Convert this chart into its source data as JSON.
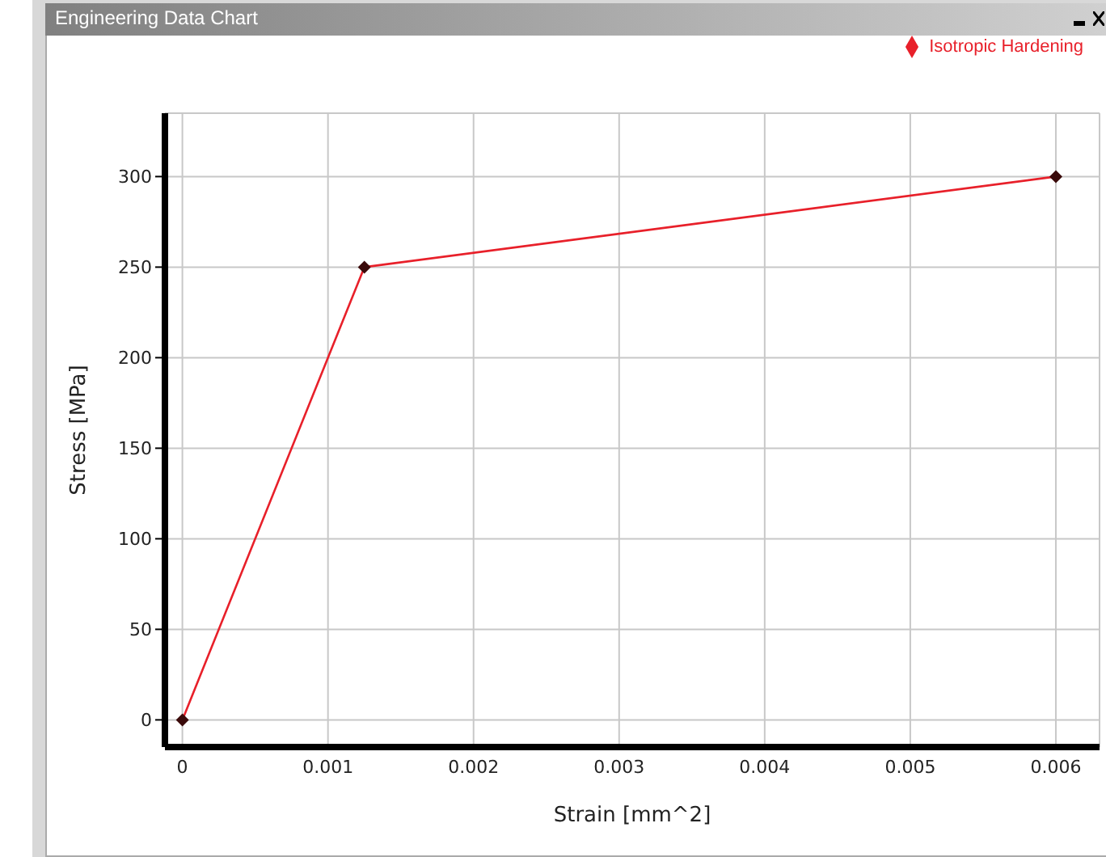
{
  "chart_data": {
    "type": "line",
    "title": "Engineering Data Chart",
    "xlabel": "Strain  [mm^2]",
    "ylabel": "Stress  [MPa]",
    "x": [
      0,
      0.00125,
      0.006
    ],
    "series": [
      {
        "name": "Isotropic Hardening",
        "color": "#e8202a",
        "values": [
          0,
          250,
          300
        ]
      }
    ],
    "xlim": [
      -0.00012,
      0.0063
    ],
    "xticks": [
      0,
      0.001,
      0.002,
      0.003,
      0.004,
      0.005,
      0.006
    ],
    "ylim": [
      -15,
      335
    ],
    "yticks": [
      0,
      50,
      100,
      150,
      200,
      250,
      300
    ],
    "grid": true,
    "legend": "top right",
    "marker": "diamond",
    "line_style": "solid"
  }
}
